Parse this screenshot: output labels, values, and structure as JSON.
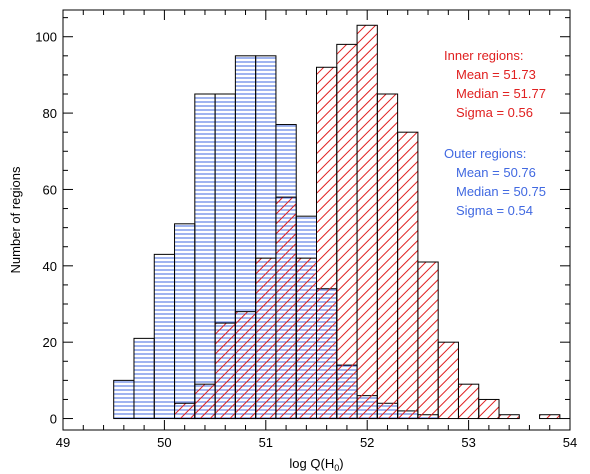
{
  "chart_data": {
    "type": "bar",
    "xlabel": "log Q(H",
    "xlabel_sub": "0",
    "xlabel_tail": ")",
    "ylabel": "Number of regions",
    "xlim": [
      49,
      54
    ],
    "ylim": [
      -3,
      107
    ],
    "bin_width": 0.2,
    "x_ticks": [
      49,
      50,
      51,
      52,
      53,
      54
    ],
    "x_tick_labels": [
      "49",
      "50",
      "51",
      "52",
      "53",
      "54"
    ],
    "x_minor_step": 0.2,
    "y_ticks": [
      0,
      20,
      40,
      60,
      80,
      100
    ],
    "y_tick_labels": [
      "0",
      "20",
      "40",
      "60",
      "80",
      "100"
    ],
    "y_minor_step": 5,
    "series": [
      {
        "name": "Outer regions",
        "pattern": "horizontal-lines",
        "color": "#4169e1",
        "bin_left_edges": [
          49.5,
          49.7,
          49.9,
          50.1,
          50.3,
          50.5,
          50.7,
          50.9,
          51.1,
          51.3,
          51.5,
          51.7,
          51.9,
          52.1,
          52.3,
          52.5
        ],
        "values": [
          10,
          21,
          43,
          51,
          85,
          85,
          95,
          95,
          77,
          53,
          34,
          14,
          6,
          4,
          2,
          1
        ]
      },
      {
        "name": "Inner regions",
        "pattern": "diagonal-lines",
        "color": "#e02020",
        "bin_left_edges": [
          50.1,
          50.3,
          50.5,
          50.7,
          50.9,
          51.1,
          51.3,
          51.5,
          51.7,
          51.9,
          52.1,
          52.3,
          52.5,
          52.7,
          52.9,
          53.1,
          53.3,
          53.5,
          53.7
        ],
        "values": [
          4,
          9,
          25,
          28,
          42,
          58,
          42,
          92,
          98,
          103,
          85,
          75,
          41,
          20,
          9,
          5,
          1,
          0,
          1
        ]
      }
    ],
    "annotations": {
      "inner": {
        "color": "#e02020",
        "lines": [
          "Inner regions:",
          "Mean =  51.73",
          "Median = 51.77",
          "Sigma = 0.56"
        ]
      },
      "outer": {
        "color": "#4169e1",
        "lines": [
          "Outer regions:",
          "Mean =  50.76",
          "Median = 50.75",
          "Sigma = 0.54"
        ]
      }
    }
  }
}
